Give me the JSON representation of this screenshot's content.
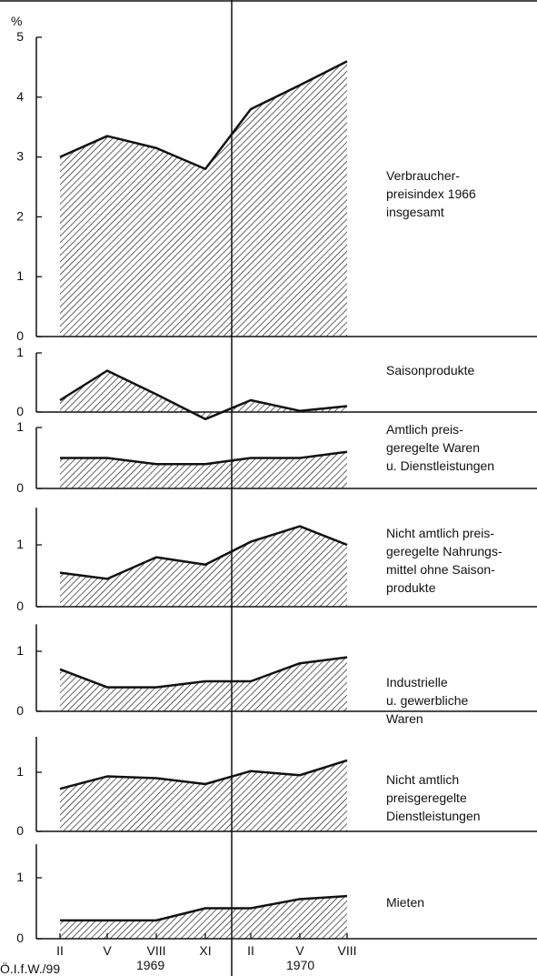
{
  "chart_data": [
    {
      "type": "area",
      "ylabel": "%",
      "label": [
        "Verbraucher-",
        "preisindex 1966",
        "insgesamt"
      ],
      "values": [
        3.0,
        3.35,
        3.15,
        2.8,
        3.8,
        4.2,
        4.6
      ],
      "ylim": [
        0,
        5
      ],
      "yticks": [
        0,
        1,
        2,
        3,
        4,
        5
      ]
    },
    {
      "type": "area",
      "label": [
        "Saisonprodukte"
      ],
      "values": [
        0.2,
        0.7,
        0.3,
        -0.12,
        0.2,
        0.02,
        0.1
      ],
      "ylim": [
        0,
        1
      ],
      "yticks": [
        0,
        1
      ]
    },
    {
      "type": "area",
      "label": [
        "Amtlich preis-",
        "geregelte Waren",
        "u. Dienstleistungen"
      ],
      "values": [
        0.5,
        0.5,
        0.4,
        0.4,
        0.5,
        0.5,
        0.6
      ],
      "ylim": [
        0,
        1
      ],
      "yticks": [
        0,
        1
      ]
    },
    {
      "type": "area",
      "label": [
        "Nicht amtlich preis-",
        "geregelte Nahrungs-",
        "mittel ohne Saison-",
        "produkte"
      ],
      "values": [
        0.55,
        0.45,
        0.8,
        0.68,
        1.05,
        1.3,
        1.0
      ],
      "ylim": [
        0,
        1.6
      ],
      "yticks": [
        0,
        1
      ]
    },
    {
      "type": "area",
      "label": [
        "Industrielle",
        "u. gewerbliche",
        "Waren"
      ],
      "values": [
        0.7,
        0.4,
        0.4,
        0.5,
        0.5,
        0.8,
        0.9
      ],
      "ylim": [
        0,
        1.45
      ],
      "yticks": [
        0,
        1
      ]
    },
    {
      "type": "area",
      "label": [
        "Nicht amtlich",
        "preisgeregelte",
        "Dienstleistungen"
      ],
      "values": [
        0.72,
        0.93,
        0.9,
        0.8,
        1.02,
        0.95,
        1.2
      ],
      "ylim": [
        0,
        1.6
      ],
      "yticks": [
        0,
        1
      ]
    },
    {
      "type": "area",
      "label": [
        "Mieten"
      ],
      "values": [
        0.3,
        0.3,
        0.3,
        0.5,
        0.5,
        0.65,
        0.7
      ],
      "ylim": [
        0,
        1.55
      ],
      "yticks": [
        0,
        1
      ]
    }
  ],
  "x_axis": {
    "categories": [
      "II",
      "V",
      "VIII",
      "XI",
      "II",
      "V",
      "VIII"
    ],
    "years": [
      "1969",
      "1970"
    ]
  },
  "source": "Ö.I.f.W./99"
}
